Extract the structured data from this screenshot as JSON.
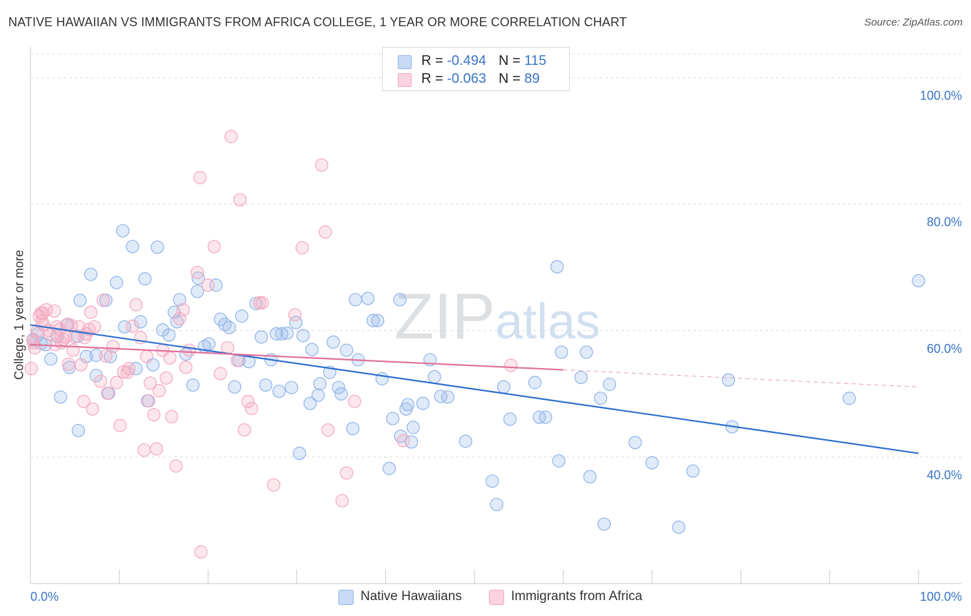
{
  "title": "NATIVE HAWAIIAN VS IMMIGRANTS FROM AFRICA COLLEGE, 1 YEAR OR MORE CORRELATION CHART",
  "source": "Source: ZipAtlas.com",
  "watermark": "ZIPatlas",
  "legend": {
    "rows": [
      {
        "r_label": "R = ",
        "r_value": "-0.494",
        "n_label": "N = ",
        "n_value": "115",
        "color": "#8fb4e8"
      },
      {
        "r_label": "R = ",
        "r_value": "-0.063",
        "n_label": "N = ",
        "n_value": "89",
        "color": "#f3a8bf"
      }
    ]
  },
  "bottom_legend": [
    "Native Hawaiians",
    "Immigrants from Africa"
  ],
  "chart_data": {
    "type": "scatter",
    "title": "NATIVE HAWAIIAN VS IMMIGRANTS FROM AFRICA COLLEGE, 1 YEAR OR MORE CORRELATION CHART",
    "xlabel": "",
    "ylabel": "College, 1 year or more",
    "xlim": [
      0,
      100
    ],
    "ylim": [
      20,
      104
    ],
    "x_tick_labels": [
      "0.0%",
      "100.0%"
    ],
    "y_tick_values": [
      40,
      60,
      80,
      100
    ],
    "y_tick_labels": [
      "40.0%",
      "60.0%",
      "80.0%",
      "100.0%"
    ],
    "grid": "dashed horizontal",
    "legend_position": "top-center",
    "colors": {
      "native_hawaiians": "#8fb4e8",
      "immigrants_from_africa": "#f3a8bf",
      "blue_line": "#2f6fd0",
      "pink_line": "#e0709a"
    },
    "series": [
      {
        "name": "Native Hawaiians",
        "trend": {
          "x0": 0,
          "y0": 60.9,
          "x1": 100,
          "y1": 40.6,
          "style": "solid"
        },
        "points": [
          [
            0.3,
            58.5
          ],
          [
            0.8,
            59.5
          ],
          [
            1.2,
            58.0
          ],
          [
            1.7,
            57.8
          ],
          [
            2.3,
            55.5
          ],
          [
            3.0,
            59.1
          ],
          [
            3.4,
            49.5
          ],
          [
            4.1,
            60.9
          ],
          [
            4.4,
            54.2
          ],
          [
            5.3,
            59.1
          ],
          [
            5.4,
            44.2
          ],
          [
            5.6,
            64.8
          ],
          [
            6.3,
            55.9
          ],
          [
            6.8,
            68.9
          ],
          [
            7.4,
            56.1
          ],
          [
            7.4,
            52.9
          ],
          [
            8.5,
            64.8
          ],
          [
            8.8,
            50.1
          ],
          [
            9.0,
            55.9
          ],
          [
            9.7,
            67.6
          ],
          [
            10.4,
            75.8
          ],
          [
            10.6,
            60.6
          ],
          [
            11.5,
            73.3
          ],
          [
            11.9,
            54.0
          ],
          [
            12.4,
            61.4
          ],
          [
            12.9,
            68.2
          ],
          [
            13.2,
            48.9
          ],
          [
            13.8,
            54.6
          ],
          [
            14.3,
            73.2
          ],
          [
            14.9,
            60.1
          ],
          [
            15.6,
            59.3
          ],
          [
            16.2,
            62.9
          ],
          [
            16.5,
            61.4
          ],
          [
            16.8,
            64.9
          ],
          [
            17.5,
            56.3
          ],
          [
            18.3,
            51.4
          ],
          [
            18.8,
            66.2
          ],
          [
            18.9,
            68.3
          ],
          [
            19.6,
            57.5
          ],
          [
            20.1,
            57.9
          ],
          [
            20.9,
            67.2
          ],
          [
            21.4,
            61.8
          ],
          [
            21.9,
            61.0
          ],
          [
            22.4,
            60.5
          ],
          [
            23.0,
            51.1
          ],
          [
            23.5,
            55.3
          ],
          [
            23.8,
            62.3
          ],
          [
            24.6,
            55.1
          ],
          [
            25.4,
            64.3
          ],
          [
            26.0,
            59.0
          ],
          [
            26.5,
            51.4
          ],
          [
            27.1,
            55.4
          ],
          [
            27.7,
            59.5
          ],
          [
            28.0,
            50.4
          ],
          [
            28.3,
            59.5
          ],
          [
            28.9,
            59.6
          ],
          [
            29.4,
            51.0
          ],
          [
            29.9,
            61.3
          ],
          [
            30.3,
            40.6
          ],
          [
            30.7,
            59.2
          ],
          [
            31.5,
            48.5
          ],
          [
            31.7,
            57.0
          ],
          [
            32.4,
            49.8
          ],
          [
            32.6,
            51.6
          ],
          [
            33.7,
            53.4
          ],
          [
            34.1,
            58.2
          ],
          [
            34.7,
            51.0
          ],
          [
            35.0,
            50.0
          ],
          [
            35.6,
            56.9
          ],
          [
            36.3,
            44.5
          ],
          [
            36.6,
            64.9
          ],
          [
            36.9,
            55.4
          ],
          [
            38.0,
            65.1
          ],
          [
            38.6,
            61.6
          ],
          [
            39.1,
            61.6
          ],
          [
            39.6,
            52.4
          ],
          [
            40.4,
            38.2
          ],
          [
            40.8,
            46.1
          ],
          [
            41.6,
            64.9
          ],
          [
            41.7,
            43.3
          ],
          [
            42.3,
            47.6
          ],
          [
            42.5,
            48.3
          ],
          [
            42.9,
            42.4
          ],
          [
            43.1,
            44.7
          ],
          [
            44.2,
            48.5
          ],
          [
            45.0,
            55.4
          ],
          [
            45.5,
            52.7
          ],
          [
            46.2,
            49.6
          ],
          [
            47.0,
            49.5
          ],
          [
            49.0,
            42.5
          ],
          [
            52.0,
            36.2
          ],
          [
            52.5,
            32.5
          ],
          [
            53.3,
            51.1
          ],
          [
            54.0,
            46.0
          ],
          [
            56.8,
            51.8
          ],
          [
            57.3,
            46.3
          ],
          [
            58.0,
            46.3
          ],
          [
            59.3,
            70.1
          ],
          [
            59.5,
            39.4
          ],
          [
            59.8,
            56.6
          ],
          [
            62.0,
            52.6
          ],
          [
            62.6,
            56.6
          ],
          [
            63.0,
            36.9
          ],
          [
            64.2,
            49.3
          ],
          [
            64.6,
            29.4
          ],
          [
            65.2,
            51.5
          ],
          [
            68.1,
            42.3
          ],
          [
            70.0,
            39.1
          ],
          [
            73.0,
            28.9
          ],
          [
            74.6,
            37.8
          ],
          [
            78.6,
            52.2
          ],
          [
            79.0,
            44.8
          ],
          [
            92.2,
            49.3
          ],
          [
            100.0,
            67.9
          ]
        ]
      },
      {
        "name": "Immigrants from Africa",
        "trend": {
          "x0": 0,
          "y0": 57.8,
          "x1": 60,
          "y1": 53.8,
          "style": "solid",
          "dashed_to": {
            "x": 100,
            "y": 51.1
          }
        },
        "points": [
          [
            0.1,
            54.0
          ],
          [
            0.3,
            58.6
          ],
          [
            0.4,
            58.1
          ],
          [
            0.5,
            57.3
          ],
          [
            0.8,
            60.0
          ],
          [
            1.0,
            62.3
          ],
          [
            1.2,
            62.8
          ],
          [
            1.3,
            61.5
          ],
          [
            1.4,
            62.8
          ],
          [
            1.5,
            60.9
          ],
          [
            1.8,
            63.3
          ],
          [
            2.1,
            60.0
          ],
          [
            2.2,
            59.4
          ],
          [
            2.7,
            63.1
          ],
          [
            2.8,
            57.8
          ],
          [
            3.0,
            60.6
          ],
          [
            3.3,
            60.2
          ],
          [
            3.5,
            58.1
          ],
          [
            3.7,
            58.6
          ],
          [
            4.0,
            59.0
          ],
          [
            4.2,
            61.0
          ],
          [
            4.3,
            54.7
          ],
          [
            4.6,
            60.8
          ],
          [
            4.8,
            56.9
          ],
          [
            5.0,
            59.0
          ],
          [
            5.5,
            60.6
          ],
          [
            5.7,
            54.6
          ],
          [
            6.0,
            48.8
          ],
          [
            6.1,
            58.9
          ],
          [
            6.3,
            59.5
          ],
          [
            6.6,
            60.2
          ],
          [
            6.8,
            62.9
          ],
          [
            7.0,
            47.6
          ],
          [
            7.2,
            60.6
          ],
          [
            7.9,
            52.0
          ],
          [
            8.2,
            64.8
          ],
          [
            8.5,
            56.0
          ],
          [
            8.7,
            50.1
          ],
          [
            9.3,
            57.5
          ],
          [
            9.7,
            51.8
          ],
          [
            10.1,
            45.0
          ],
          [
            10.5,
            53.5
          ],
          [
            10.9,
            53.4
          ],
          [
            11.1,
            54.0
          ],
          [
            11.5,
            60.7
          ],
          [
            11.9,
            64.1
          ],
          [
            12.4,
            58.9
          ],
          [
            12.8,
            41.1
          ],
          [
            13.1,
            55.9
          ],
          [
            13.3,
            48.9
          ],
          [
            13.5,
            51.7
          ],
          [
            13.9,
            46.7
          ],
          [
            14.2,
            41.3
          ],
          [
            14.5,
            50.5
          ],
          [
            14.9,
            56.9
          ],
          [
            15.3,
            52.5
          ],
          [
            15.7,
            55.7
          ],
          [
            15.9,
            46.4
          ],
          [
            16.4,
            38.6
          ],
          [
            16.8,
            61.9
          ],
          [
            17.2,
            63.3
          ],
          [
            17.5,
            54.2
          ],
          [
            17.9,
            56.9
          ],
          [
            18.8,
            69.2
          ],
          [
            19.1,
            84.2
          ],
          [
            19.2,
            25.0
          ],
          [
            20.0,
            67.2
          ],
          [
            20.7,
            73.3
          ],
          [
            21.4,
            53.2
          ],
          [
            22.2,
            57.3
          ],
          [
            22.6,
            90.7
          ],
          [
            23.3,
            55.3
          ],
          [
            23.6,
            80.7
          ],
          [
            24.1,
            44.3
          ],
          [
            24.5,
            48.8
          ],
          [
            24.9,
            47.7
          ],
          [
            25.8,
            64.4
          ],
          [
            26.1,
            64.4
          ],
          [
            27.4,
            35.6
          ],
          [
            29.8,
            62.5
          ],
          [
            30.6,
            73.1
          ],
          [
            32.8,
            86.2
          ],
          [
            33.2,
            75.6
          ],
          [
            33.5,
            44.3
          ],
          [
            35.1,
            33.1
          ],
          [
            35.6,
            37.5
          ],
          [
            36.5,
            48.8
          ],
          [
            42.0,
            42.6
          ],
          [
            54.1,
            54.5
          ]
        ]
      }
    ]
  }
}
